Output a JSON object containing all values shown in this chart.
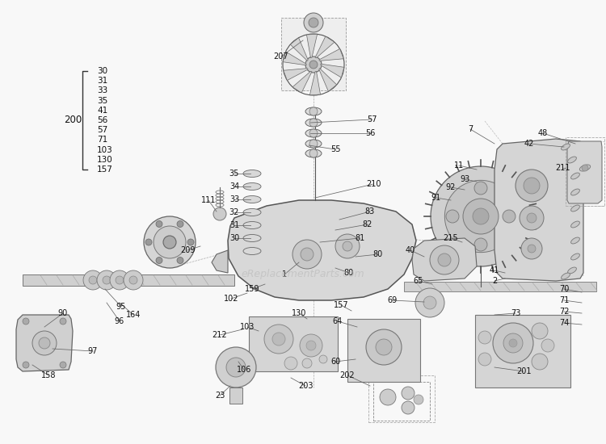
{
  "bg_color": "#ffffff",
  "watermark": "eReplacementParts.com",
  "bracket_label": "200",
  "bracket_items": [
    "30",
    "31",
    "33",
    "35",
    "41",
    "56",
    "57",
    "71",
    "103",
    "130",
    "157"
  ],
  "figsize": [
    7.5,
    5.5
  ],
  "dpi": 100,
  "lc": "#444444",
  "fs": 7.0
}
